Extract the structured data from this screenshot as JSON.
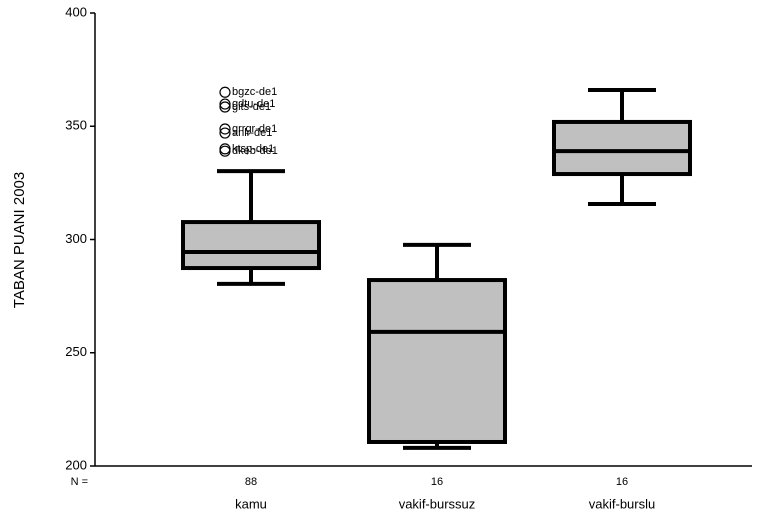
{
  "chart_data": {
    "type": "box",
    "y_label": "TABAN PUANI 2003",
    "n_label": "N =",
    "categories": [
      "kamu",
      "vakif-burssuz",
      "vakif-burslu"
    ],
    "counts": [
      88,
      16,
      16
    ],
    "color": "#c0c0c0",
    "boxes": [
      {
        "whisker_low": 280.4,
        "q1": 287.4,
        "median": 294.5,
        "q3": 307.7,
        "whisker_high": 330.2,
        "outliers": [
          {
            "value": 365,
            "label": "bgzc-de1"
          },
          {
            "value": 359.8,
            "label": "gdtu-de1"
          },
          {
            "value": 358.5,
            "label": "gits-de1"
          },
          {
            "value": 348.8,
            "label": "grrgr-de1"
          },
          {
            "value": 347,
            "label": "anlr-de1"
          },
          {
            "value": 340,
            "label": "ktsp-de1"
          },
          {
            "value": 339,
            "label": "dkeb-de1"
          }
        ]
      },
      {
        "whisker_low": 208,
        "q1": 210.6,
        "median": 259.2,
        "q3": 282.1,
        "whisker_high": 297.6,
        "outliers": []
      },
      {
        "whisker_low": 315.7,
        "q1": 328.9,
        "median": 339,
        "q3": 351.9,
        "whisker_high": 366,
        "outliers": []
      }
    ],
    "ylim": [
      200,
      400
    ],
    "yticks": [
      200,
      250,
      300,
      350,
      400
    ]
  }
}
